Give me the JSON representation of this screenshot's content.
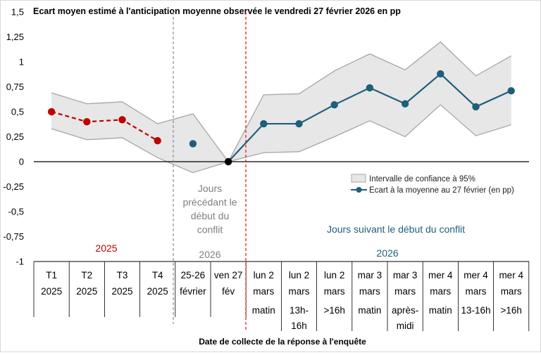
{
  "colors": {
    "red": "#c00000",
    "blue": "#1f5f7a",
    "band_fill": "#e7e7e7",
    "band_stroke": "#a6a6a6",
    "gray_text": "#7f7f7f",
    "red_line": "#ff0000"
  },
  "chart_data": {
    "type": "line",
    "title": "Ecart moyen estimé à l'anticipation moyenne observée le vendredi 27 février 2026 en pp",
    "xlabel": "Date de collecte de la réponse à l'enquête",
    "ylabel": "",
    "ylim": [
      -1,
      1.5
    ],
    "yticks": [
      "1,5",
      "1,25",
      "1",
      "0,75",
      "0,5",
      "0,25",
      "0",
      "-0,25",
      "-0,5",
      "-0,75",
      "-1"
    ],
    "grid": false,
    "legend_position": "right, below zero line",
    "categories": [
      {
        "line1": "T1",
        "line2": "2025",
        "line3": "",
        "line4": ""
      },
      {
        "line1": "T2",
        "line2": "2025",
        "line3": "",
        "line4": ""
      },
      {
        "line1": "T3",
        "line2": "2025",
        "line3": "",
        "line4": ""
      },
      {
        "line1": "T4",
        "line2": "2025",
        "line3": "",
        "line4": ""
      },
      {
        "line1": "25-26",
        "line2": "février",
        "line3": "",
        "line4": ""
      },
      {
        "line1": "ven 27",
        "line2": "fév",
        "line3": "",
        "line4": ""
      },
      {
        "line1": "lun 2",
        "line2": "mars",
        "line3": "matin",
        "line4": ""
      },
      {
        "line1": "lun 2",
        "line2": "mars",
        "line3": "13h-",
        "line4": "16h"
      },
      {
        "line1": "lun 2",
        "line2": "mars",
        "line3": ">16h",
        "line4": ""
      },
      {
        "line1": "mar 3",
        "line2": "mars",
        "line3": "matin",
        "line4": ""
      },
      {
        "line1": "mar 3",
        "line2": "mars",
        "line3": "après-",
        "line4": "midi"
      },
      {
        "line1": "mer 4",
        "line2": "mars",
        "line3": "matin",
        "line4": ""
      },
      {
        "line1": "mer 4",
        "line2": "mars",
        "line3": "13-16h",
        "line4": ""
      },
      {
        "line1": "mer 4",
        "line2": "mars",
        "line3": ">16h",
        "line4": ""
      }
    ],
    "series": [
      {
        "name": "Ecart à la moyenne au 27 février (en pp)",
        "values": [
          0.5,
          0.4,
          0.42,
          0.21,
          0.18,
          0,
          0.38,
          0.38,
          0.57,
          0.74,
          0.58,
          0.88,
          0.55,
          0.71
        ]
      },
      {
        "name": "Intervalle de confiance à 95%",
        "upper": [
          0.69,
          0.58,
          0.6,
          0.38,
          0.48,
          0,
          0.67,
          0.68,
          0.91,
          1.08,
          0.92,
          1.2,
          0.86,
          1.06
        ],
        "lower": [
          0.33,
          0.22,
          0.24,
          0.04,
          -0.11,
          0,
          0.09,
          0.1,
          0.25,
          0.41,
          0.25,
          0.57,
          0.26,
          0.37
        ]
      }
    ],
    "quarterly_points_color": "red",
    "daily_points_color": "blue",
    "annotations": {
      "year_2025": "2025",
      "year_2026_before": "2026",
      "year_2026_after": "2026",
      "before_conflict": [
        "Jours",
        "précédant le",
        "début du",
        "conflit"
      ],
      "after_conflict": "Jours suivant le début du conflit"
    }
  }
}
